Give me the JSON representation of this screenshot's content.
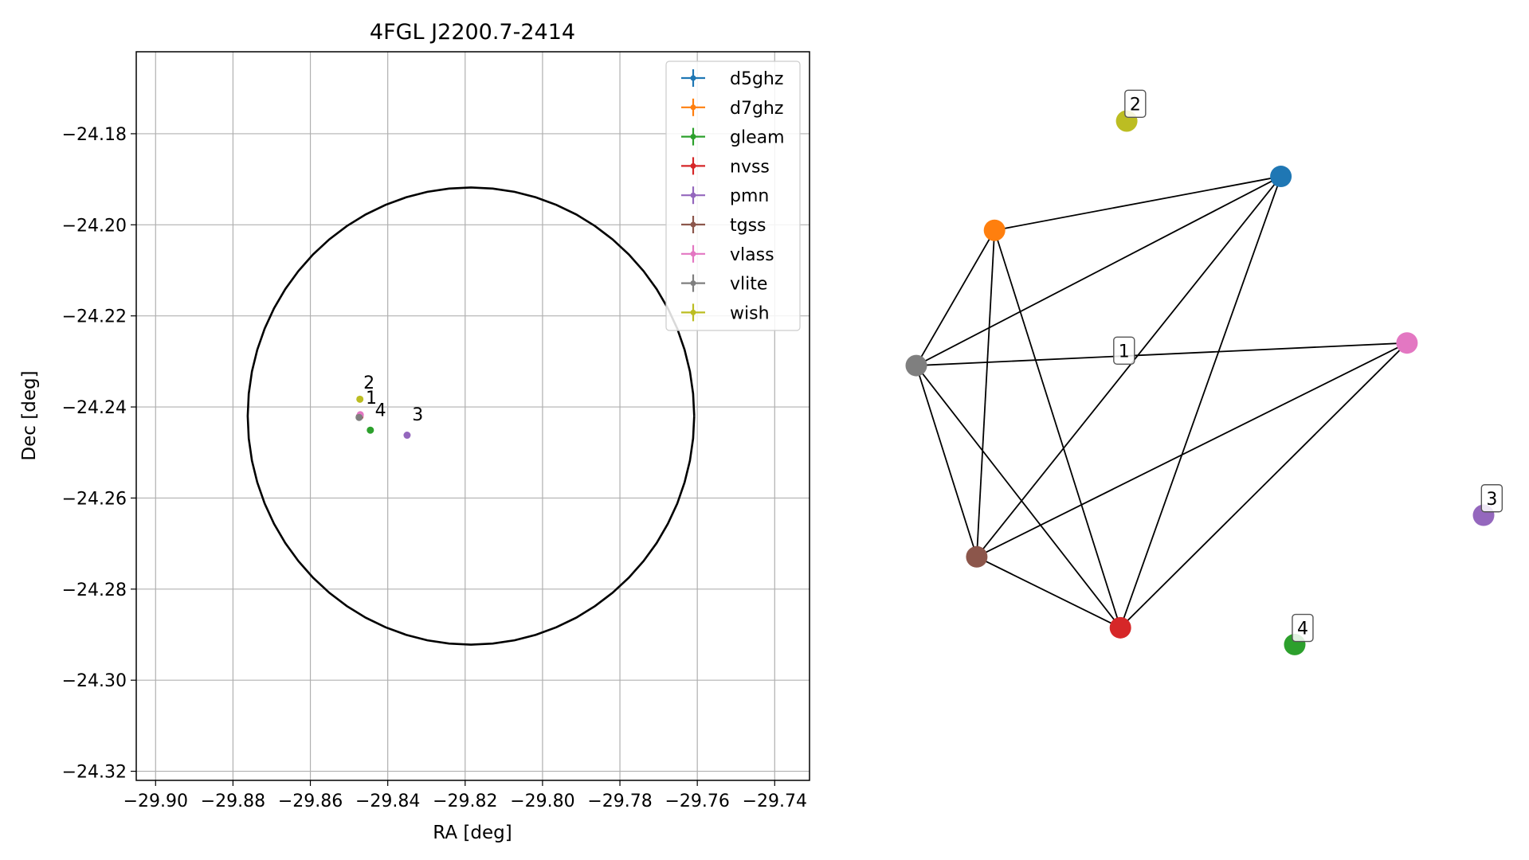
{
  "colors": {
    "d5ghz": "#1f77b4",
    "d7ghz": "#ff7f0e",
    "gleam": "#2ca02c",
    "nvss": "#d62728",
    "pmn": "#9467bd",
    "tgss": "#8c564b",
    "vlass": "#e377c2",
    "vlite": "#7f7f7f",
    "wish": "#bcbd22",
    "grid": "#b0b0b0",
    "frame": "#000000"
  },
  "chart_data": [
    {
      "type": "scatter",
      "title": "4FGL J2200.7-2414",
      "xlabel": "RA [deg]",
      "ylabel": "Dec [deg]",
      "xlim": [
        -29.905,
        -29.731
      ],
      "ylim": [
        -24.322,
        -24.162
      ],
      "xticks": [
        -29.9,
        -29.88,
        -29.86,
        -29.84,
        -29.82,
        -29.8,
        -29.78,
        -29.76,
        -29.74
      ],
      "xtick_labels": [
        "−29.90",
        "−29.88",
        "−29.86",
        "−29.84",
        "−29.82",
        "−29.80",
        "−29.78",
        "−29.76",
        "−29.74"
      ],
      "yticks": [
        -24.18,
        -24.2,
        -24.22,
        -24.24,
        -24.26,
        -24.28,
        -24.3,
        -24.32
      ],
      "ytick_labels": [
        "−24.18",
        "−24.20",
        "−24.22",
        "−24.24",
        "−24.26",
        "−24.28",
        "−24.30",
        "−24.32"
      ],
      "grid": true,
      "legend_placement": "top-right",
      "legend": [
        "d5ghz",
        "d7ghz",
        "gleam",
        "nvss",
        "pmn",
        "tgss",
        "vlass",
        "vlite",
        "wish"
      ],
      "circle": {
        "center": [
          -29.8185,
          -24.242
        ],
        "radius_ra": 0.0577,
        "radius_dec": 0.0502
      },
      "series": [
        {
          "name": "d5ghz",
          "x": [
            -29.8472
          ],
          "y": [
            -24.242
          ]
        },
        {
          "name": "d7ghz",
          "x": [
            -29.8472
          ],
          "y": [
            -24.242
          ]
        },
        {
          "name": "gleam",
          "x": [
            -29.8445
          ],
          "y": [
            -24.2451
          ]
        },
        {
          "name": "nvss",
          "x": [
            -29.8472
          ],
          "y": [
            -24.2421
          ]
        },
        {
          "name": "pmn",
          "x": [
            -29.835
          ],
          "y": [
            -24.2462
          ]
        },
        {
          "name": "tgss",
          "x": [
            -29.8473
          ],
          "y": [
            -24.2421
          ]
        },
        {
          "name": "vlass",
          "x": [
            -29.8471
          ],
          "y": [
            -24.2417
          ]
        },
        {
          "name": "vlite",
          "x": [
            -29.8474
          ],
          "y": [
            -24.2423
          ]
        },
        {
          "name": "wish",
          "x": [
            -29.8472
          ],
          "y": [
            -24.2383
          ]
        }
      ],
      "annotations": [
        {
          "text": "2",
          "x": -29.8463,
          "y": -24.236
        },
        {
          "text": "1",
          "x": -29.8457,
          "y": -24.2393
        },
        {
          "text": "4",
          "x": -29.8433,
          "y": -24.242
        },
        {
          "text": "3",
          "x": -29.8337,
          "y": -24.243
        }
      ]
    },
    {
      "type": "network",
      "nodes": [
        {
          "id": "d5ghz",
          "x": 0.6427,
          "y": 0.8968
        },
        {
          "id": "d7ghz",
          "x": 0.1379,
          "y": 0.7964
        },
        {
          "id": "gleam",
          "x": 0.6671,
          "y": 0.0246
        },
        {
          "id": "nvss",
          "x": 0.3598,
          "y": 0.0559
        },
        {
          "id": "pmn",
          "x": 1.0,
          "y": 0.2655
        },
        {
          "id": "tgss",
          "x": 0.1066,
          "y": 0.188
        },
        {
          "id": "vlass",
          "x": 0.865,
          "y": 0.5865
        },
        {
          "id": "vlite",
          "x": 0.0,
          "y": 0.5444
        },
        {
          "id": "wish",
          "x": 0.3709,
          "y": 1.0
        }
      ],
      "edges": [
        [
          "d5ghz",
          "d7ghz"
        ],
        [
          "d5ghz",
          "vlite"
        ],
        [
          "d5ghz",
          "tgss"
        ],
        [
          "d5ghz",
          "nvss"
        ],
        [
          "d7ghz",
          "vlite"
        ],
        [
          "d7ghz",
          "tgss"
        ],
        [
          "d7ghz",
          "nvss"
        ],
        [
          "vlite",
          "vlass"
        ],
        [
          "vlite",
          "tgss"
        ],
        [
          "vlite",
          "nvss"
        ],
        [
          "vlass",
          "tgss"
        ],
        [
          "vlass",
          "nvss"
        ],
        [
          "tgss",
          "nvss"
        ]
      ],
      "group_labels": [
        {
          "text": "1",
          "x": 0.3663,
          "y": 0.5723
        },
        {
          "text": "2",
          "x": 0.386,
          "y": 1.0322
        },
        {
          "text": "3",
          "x": 1.0145,
          "y": 0.2971
        },
        {
          "text": "4",
          "x": 0.6811,
          "y": 0.0556
        }
      ]
    }
  ]
}
